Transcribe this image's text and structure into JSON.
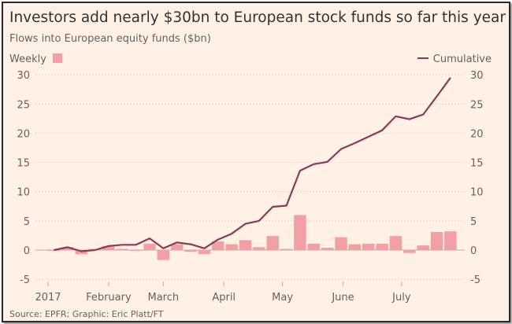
{
  "title": "Investors add nearly $30bn to European stock funds so far this year",
  "subtitle": "Flows into European equity funds ($bn)",
  "source": "Source: EPFR; Graphic: Eric Platt/FT",
  "colors": {
    "background": "#fff1e5",
    "weekly": "#f2a0a6",
    "cumulative": "#8b3a55"
  },
  "chart_data": {
    "type": "bar+line",
    "title": "Investors add nearly $30bn to European stock funds so far this year",
    "subtitle": "Flows into European equity funds ($bn)",
    "legend": {
      "placement": "top",
      "weekly_label": "Weekly",
      "cumulative_label": "Cumulative"
    },
    "ylim": [
      -5,
      30
    ],
    "yticks": [
      "30",
      "25",
      "20",
      "15",
      "10",
      "5",
      "0",
      "-5"
    ],
    "ytick_values": [
      30,
      25,
      20,
      15,
      10,
      5,
      0,
      -5
    ],
    "y_axis": "both sides",
    "grid": true,
    "xtick_labels": [
      "2017",
      "February",
      "March",
      "April",
      "May",
      "June",
      "July"
    ],
    "xtick_dates": [
      "2017-01-01",
      "2017-02-01",
      "2017-03-01",
      "2017-04-01",
      "2017-05-01",
      "2017-06-01",
      "2017-07-01"
    ],
    "x": [
      "2017-01-04",
      "2017-01-11",
      "2017-01-18",
      "2017-01-25",
      "2017-02-01",
      "2017-02-08",
      "2017-02-15",
      "2017-02-22",
      "2017-03-01",
      "2017-03-08",
      "2017-03-15",
      "2017-03-22",
      "2017-03-29",
      "2017-04-05",
      "2017-04-12",
      "2017-04-19",
      "2017-04-26",
      "2017-05-03",
      "2017-05-10",
      "2017-05-17",
      "2017-05-24",
      "2017-05-31",
      "2017-06-07",
      "2017-06-14",
      "2017-06-21",
      "2017-06-28",
      "2017-07-05",
      "2017-07-12",
      "2017-07-19",
      "2017-07-26"
    ],
    "series": [
      {
        "name": "Weekly",
        "type": "bar",
        "values": [
          0,
          0.5,
          -0.7,
          0.2,
          0.7,
          0.2,
          0,
          1.1,
          -1.7,
          1.0,
          -0.3,
          -0.7,
          1.5,
          1.0,
          1.7,
          0.5,
          2.4,
          0.2,
          6.0,
          1.1,
          0.4,
          2.2,
          1.0,
          1.1,
          1.1,
          2.4,
          -0.5,
          0.8,
          3.1,
          3.2
        ]
      },
      {
        "name": "Cumulative",
        "type": "line",
        "values": [
          0,
          0.5,
          -0.2,
          0,
          0.7,
          0.9,
          0.9,
          2.0,
          0.3,
          1.3,
          1.0,
          0.3,
          1.8,
          2.8,
          4.5,
          5.0,
          7.4,
          7.6,
          13.6,
          14.7,
          15.1,
          17.3,
          18.3,
          19.4,
          20.5,
          22.9,
          22.4,
          23.2,
          26.3,
          29.5
        ]
      }
    ]
  }
}
